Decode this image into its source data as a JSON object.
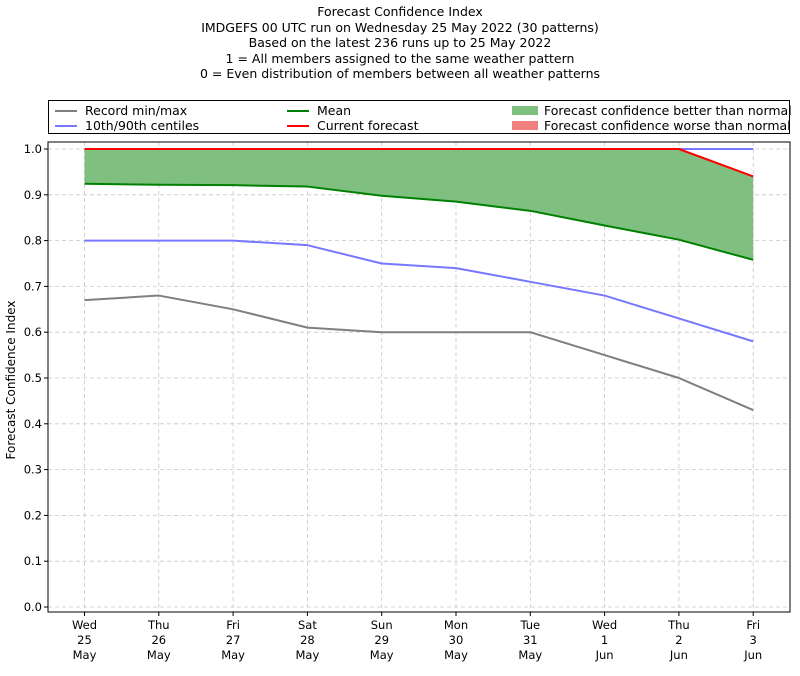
{
  "title_lines": [
    "Forecast Confidence Index",
    "IMDGEFS 00 UTC run on Wednesday 25 May 2022 (30 patterns)",
    "Based on the latest 236 runs up to 25 May 2022",
    "1 = All members assigned to the same weather pattern",
    "0 = Even distribution of members between all weather patterns"
  ],
  "legend": {
    "record": "Record min/max",
    "centiles": "10th/90th centiles",
    "mean": "Mean",
    "current": "Current forecast",
    "better": "Forecast confidence better than normal",
    "worse": "Forecast confidence worse than normal"
  },
  "colors": {
    "record": "#7f7f7f",
    "centiles": "#7777ff",
    "mean": "#008000",
    "current": "#ff0000",
    "better": "#7fbf7f",
    "worse": "#f08080"
  },
  "chart_data": {
    "type": "line",
    "ylabel": "Forecast Confidence Index",
    "ylim": [
      0.0,
      1.0
    ],
    "yticks": [
      "0.0",
      "0.1",
      "0.2",
      "0.3",
      "0.4",
      "0.5",
      "0.6",
      "0.7",
      "0.8",
      "0.9",
      "1.0"
    ],
    "grid": true,
    "legend_position": "top",
    "categories": [
      [
        "Wed",
        "25",
        "May"
      ],
      [
        "Thu",
        "26",
        "May"
      ],
      [
        "Fri",
        "27",
        "May"
      ],
      [
        "Sat",
        "28",
        "May"
      ],
      [
        "Sun",
        "29",
        "May"
      ],
      [
        "Mon",
        "30",
        "May"
      ],
      [
        "Tue",
        "31",
        "May"
      ],
      [
        "Wed",
        "1",
        "Jun"
      ],
      [
        "Thu",
        "2",
        "Jun"
      ],
      [
        "Fri",
        "3",
        "Jun"
      ]
    ],
    "series": [
      {
        "name": "Record min/max",
        "key": "record_max",
        "values": [
          1.0,
          1.0,
          1.0,
          1.0,
          1.0,
          1.0,
          1.0,
          1.0,
          1.0,
          1.0
        ]
      },
      {
        "name": "Record min/max",
        "key": "record_min",
        "values": [
          0.67,
          0.68,
          0.65,
          0.61,
          0.6,
          0.6,
          0.6,
          0.55,
          0.5,
          0.43
        ]
      },
      {
        "name": "10th/90th centiles",
        "key": "p90",
        "values": [
          1.0,
          1.0,
          1.0,
          1.0,
          1.0,
          1.0,
          1.0,
          1.0,
          1.0,
          1.0
        ]
      },
      {
        "name": "10th/90th centiles",
        "key": "p10",
        "values": [
          0.8,
          0.8,
          0.8,
          0.79,
          0.75,
          0.74,
          0.71,
          0.68,
          0.63,
          0.58
        ]
      },
      {
        "name": "Mean",
        "key": "mean",
        "values": [
          0.924,
          0.922,
          0.921,
          0.918,
          0.898,
          0.885,
          0.865,
          0.833,
          0.802,
          0.758
        ]
      },
      {
        "name": "Current forecast",
        "key": "current",
        "values": [
          1.0,
          1.0,
          1.0,
          1.0,
          1.0,
          1.0,
          1.0,
          1.0,
          1.0,
          0.94
        ]
      }
    ]
  }
}
